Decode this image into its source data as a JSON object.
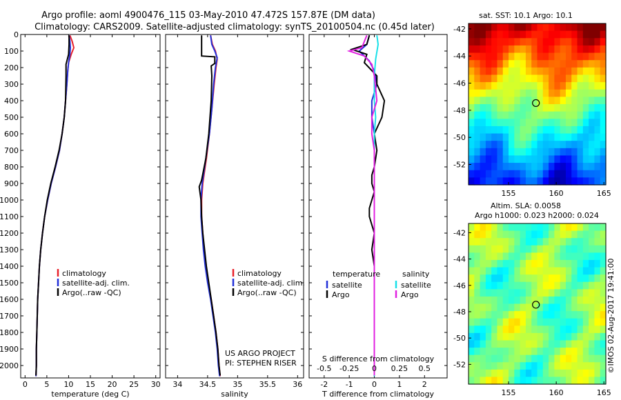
{
  "header": {
    "title_line1": "Argo profile: aoml 4900476_115 03-May-2010 47.472S 157.87E (DM data)",
    "title_line2": "Climatology: CARS2009. Satellite-adjusted climatology: synTS_20100504.nc (0.45d later)"
  },
  "colors": {
    "climatology": "#e8202a",
    "satellite": "#2230d8",
    "argo": "#000000",
    "sal_satellite": "#18e0e8",
    "sal_argo": "#e020e0"
  },
  "chart_data": [
    {
      "type": "line",
      "id": "temperature",
      "xlabel": "temperature (deg C)",
      "xlim": [
        -1,
        31
      ],
      "xticks": [
        0,
        5,
        10,
        15,
        20,
        25,
        30
      ],
      "ylim": [
        2075,
        0
      ],
      "yticks": [
        0,
        100,
        200,
        300,
        400,
        500,
        600,
        700,
        800,
        900,
        1000,
        1100,
        1200,
        1300,
        1400,
        1500,
        1600,
        1700,
        1800,
        1900,
        2000
      ],
      "legend": [
        "climatology",
        "satellite-adj. clim.",
        "Argo(..raw -QC)"
      ],
      "series": [
        {
          "name": "climatology",
          "color_key": "climatology",
          "points": [
            [
              10.3,
              5
            ],
            [
              10.8,
              40
            ],
            [
              11.2,
              80
            ],
            [
              10.6,
              120
            ],
            [
              10.0,
              170
            ],
            [
              9.8,
              220
            ],
            [
              9.6,
              300
            ],
            [
              9.3,
              400
            ],
            [
              9.0,
              500
            ],
            [
              8.5,
              600
            ],
            [
              7.9,
              700
            ],
            [
              7.0,
              800
            ],
            [
              6.0,
              900
            ],
            [
              5.2,
              1000
            ],
            [
              4.5,
              1100
            ],
            [
              4.0,
              1200
            ],
            [
              3.6,
              1300
            ],
            [
              3.3,
              1400
            ],
            [
              3.1,
              1500
            ],
            [
              2.9,
              1600
            ],
            [
              2.8,
              1700
            ],
            [
              2.7,
              1800
            ],
            [
              2.6,
              1900
            ],
            [
              2.6,
              2000
            ],
            [
              2.5,
              2065
            ]
          ]
        },
        {
          "name": "satellite-adj. clim.",
          "color_key": "satellite",
          "points": [
            [
              10.1,
              5
            ],
            [
              10.3,
              40
            ],
            [
              10.4,
              80
            ],
            [
              10.3,
              120
            ],
            [
              10.0,
              170
            ],
            [
              9.8,
              220
            ],
            [
              9.6,
              300
            ],
            [
              9.3,
              400
            ],
            [
              9.0,
              500
            ],
            [
              8.5,
              600
            ],
            [
              7.9,
              700
            ],
            [
              7.0,
              800
            ],
            [
              6.0,
              900
            ],
            [
              5.2,
              1000
            ],
            [
              4.5,
              1100
            ],
            [
              4.0,
              1200
            ],
            [
              3.6,
              1300
            ],
            [
              3.3,
              1400
            ],
            [
              3.1,
              1500
            ],
            [
              2.9,
              1600
            ],
            [
              2.8,
              1700
            ],
            [
              2.7,
              1800
            ],
            [
              2.6,
              1900
            ],
            [
              2.6,
              2000
            ],
            [
              2.5,
              2065
            ]
          ]
        },
        {
          "name": "Argo(..raw -QC)",
          "color_key": "argo",
          "points": [
            [
              10.1,
              5
            ],
            [
              10.1,
              60
            ],
            [
              10.0,
              120
            ],
            [
              9.4,
              180
            ],
            [
              9.4,
              250
            ],
            [
              9.3,
              400
            ],
            [
              9.0,
              500
            ],
            [
              8.5,
              600
            ],
            [
              7.8,
              700
            ],
            [
              6.9,
              800
            ],
            [
              5.9,
              900
            ],
            [
              5.1,
              1000
            ],
            [
              4.5,
              1100
            ],
            [
              4.0,
              1200
            ],
            [
              3.6,
              1300
            ],
            [
              3.3,
              1400
            ],
            [
              3.1,
              1500
            ],
            [
              2.9,
              1600
            ],
            [
              2.8,
              1700
            ],
            [
              2.7,
              1800
            ],
            [
              2.6,
              1900
            ],
            [
              2.6,
              2000
            ],
            [
              2.5,
              2060
            ]
          ]
        }
      ]
    },
    {
      "type": "line",
      "id": "salinity",
      "xlabel": "salinity",
      "xlim": [
        33.8,
        36.1
      ],
      "xticks": [
        34,
        34.5,
        35,
        35.5,
        36
      ],
      "ylim": [
        2075,
        0
      ],
      "legend": [
        "climatology",
        "satellite-adj. clim.",
        "Argo(..raw -QC)"
      ],
      "series": [
        {
          "name": "climatology",
          "color_key": "climatology",
          "points": [
            [
              34.55,
              5
            ],
            [
              34.58,
              60
            ],
            [
              34.63,
              100
            ],
            [
              34.66,
              150
            ],
            [
              34.64,
              200
            ],
            [
              34.61,
              300
            ],
            [
              34.57,
              450
            ],
            [
              34.53,
              600
            ],
            [
              34.48,
              750
            ],
            [
              34.42,
              900
            ],
            [
              34.4,
              1000
            ],
            [
              34.4,
              1100
            ],
            [
              34.42,
              1200
            ],
            [
              34.44,
              1300
            ],
            [
              34.47,
              1400
            ],
            [
              34.51,
              1500
            ],
            [
              34.56,
              1600
            ],
            [
              34.6,
              1700
            ],
            [
              34.64,
              1800
            ],
            [
              34.67,
              1900
            ],
            [
              34.69,
              2000
            ],
            [
              34.71,
              2065
            ]
          ]
        },
        {
          "name": "satellite-adj. clim.",
          "color_key": "satellite",
          "points": [
            [
              34.55,
              5
            ],
            [
              34.57,
              60
            ],
            [
              34.62,
              100
            ],
            [
              34.66,
              140
            ],
            [
              34.63,
              200
            ],
            [
              34.6,
              300
            ],
            [
              34.57,
              450
            ],
            [
              34.53,
              600
            ],
            [
              34.47,
              750
            ],
            [
              34.41,
              900
            ],
            [
              34.39,
              1000
            ],
            [
              34.39,
              1100
            ],
            [
              34.41,
              1200
            ],
            [
              34.43,
              1300
            ],
            [
              34.46,
              1400
            ],
            [
              34.5,
              1500
            ],
            [
              34.55,
              1600
            ],
            [
              34.59,
              1700
            ],
            [
              34.63,
              1800
            ],
            [
              34.66,
              1900
            ],
            [
              34.68,
              2000
            ],
            [
              34.7,
              2065
            ]
          ]
        },
        {
          "name": "Argo(..raw -QC)",
          "color_key": "argo",
          "points": [
            [
              34.4,
              5
            ],
            [
              34.4,
              80
            ],
            [
              34.4,
              130
            ],
            [
              34.62,
              135
            ],
            [
              34.62,
              175
            ],
            [
              34.56,
              190
            ],
            [
              34.57,
              250
            ],
            [
              34.56,
              400
            ],
            [
              34.52,
              600
            ],
            [
              34.47,
              750
            ],
            [
              34.4,
              880
            ],
            [
              34.36,
              920
            ],
            [
              34.39,
              1000
            ],
            [
              34.4,
              1100
            ],
            [
              34.42,
              1200
            ],
            [
              34.45,
              1300
            ],
            [
              34.48,
              1400
            ],
            [
              34.52,
              1500
            ],
            [
              34.56,
              1600
            ],
            [
              34.6,
              1700
            ],
            [
              34.64,
              1800
            ],
            [
              34.67,
              1900
            ],
            [
              34.69,
              2000
            ],
            [
              34.71,
              2060
            ]
          ]
        }
      ]
    },
    {
      "type": "line",
      "id": "difference",
      "xlabel": "T difference from climatology",
      "xlabel_top": "S difference from climatology",
      "xlim": [
        -2.6,
        2.9
      ],
      "xticks": [
        -2,
        -1,
        0,
        1,
        2
      ],
      "xticks_top": [
        -0.5,
        -0.25,
        0,
        0.25,
        0.5
      ],
      "ylim": [
        2075,
        0
      ],
      "legend_left_title": "temperature",
      "legend_right_title": "salinity",
      "legend_left": [
        "satellite",
        "Argo"
      ],
      "legend_right": [
        "satellite",
        "Argo"
      ],
      "series": [
        {
          "name": "temperature satellite",
          "color_key": "satellite",
          "points": [
            [
              -0.2,
              5
            ],
            [
              -0.3,
              60
            ],
            [
              -0.6,
              100
            ],
            [
              -0.2,
              160
            ],
            [
              0.0,
              220
            ],
            [
              0.1,
              300
            ],
            [
              -0.1,
              400
            ],
            [
              -0.1,
              500
            ],
            [
              0.0,
              600
            ],
            [
              0.0,
              800
            ],
            [
              0.0,
              1000
            ],
            [
              0.0,
              1400
            ],
            [
              0.0,
              2065
            ]
          ]
        },
        {
          "name": "temperature Argo",
          "color_key": "argo",
          "points": [
            [
              -0.2,
              5
            ],
            [
              -0.3,
              60
            ],
            [
              -0.9,
              90
            ],
            [
              -0.3,
              120
            ],
            [
              -0.4,
              170
            ],
            [
              0.1,
              250
            ],
            [
              0.1,
              300
            ],
            [
              0.4,
              400
            ],
            [
              0.3,
              500
            ],
            [
              0.0,
              600
            ],
            [
              0.1,
              700
            ],
            [
              0.0,
              800
            ],
            [
              -0.1,
              850
            ],
            [
              -0.1,
              900
            ],
            [
              0.0,
              950
            ],
            [
              -0.2,
              1050
            ],
            [
              -0.2,
              1100
            ],
            [
              0.0,
              1200
            ],
            [
              -0.1,
              1300
            ],
            [
              0.0,
              1400
            ],
            [
              0.0,
              2060
            ]
          ]
        },
        {
          "name": "salinity satellite",
          "color_key": "sal_satellite",
          "points": [
            [
              0.1,
              5
            ],
            [
              0.15,
              60
            ],
            [
              0.05,
              150
            ],
            [
              0.0,
              250
            ],
            [
              0.0,
              400
            ],
            [
              0.05,
              500
            ],
            [
              0.0,
              600
            ],
            [
              0.0,
              800
            ],
            [
              0.0,
              1000
            ],
            [
              0.0,
              1400
            ],
            [
              0.0,
              2065
            ]
          ]
        },
        {
          "name": "salinity Argo",
          "color_key": "sal_argo",
          "points": [
            [
              -0.3,
              5
            ],
            [
              -0.5,
              80
            ],
            [
              -1.0,
              100
            ],
            [
              -0.4,
              130
            ],
            [
              -0.1,
              180
            ],
            [
              0.0,
              250
            ],
            [
              0.1,
              400
            ],
            [
              -0.1,
              500
            ],
            [
              -0.1,
              600
            ],
            [
              0.0,
              700
            ],
            [
              0.0,
              900
            ],
            [
              0.0,
              1200
            ],
            [
              0.0,
              1500
            ],
            [
              0.0,
              2060
            ]
          ]
        }
      ]
    },
    {
      "type": "heatmap",
      "id": "sst-map",
      "title": "sat. SST: 10.1 Argo: 10.1",
      "xlim": [
        150.8,
        165.2
      ],
      "ylim": [
        -53.5,
        -41.6
      ],
      "xticks": [
        155,
        160,
        165
      ],
      "yticks": [
        -42,
        -44,
        -46,
        -48,
        -50,
        -52
      ],
      "marker": {
        "lon": 157.87,
        "lat": -47.47
      }
    },
    {
      "type": "heatmap",
      "id": "sla-map",
      "title": "Altim. SLA: 0.0058",
      "subtitle": "Argo h1000: 0.023 h2000: 0.024",
      "xlim": [
        150.8,
        165.2
      ],
      "ylim": [
        -53.5,
        -41.3
      ],
      "xticks": [
        155,
        160,
        165
      ],
      "yticks": [
        -42,
        -44,
        -46,
        -48,
        -50,
        -52
      ],
      "marker": {
        "lon": 157.87,
        "lat": -47.47
      }
    }
  ],
  "annotations": {
    "project_line1": "US ARGO PROJECT",
    "project_line2": "PI: STEPHEN RISER",
    "credit": "©IMOS 02-Aug-2017 19:41:00"
  }
}
